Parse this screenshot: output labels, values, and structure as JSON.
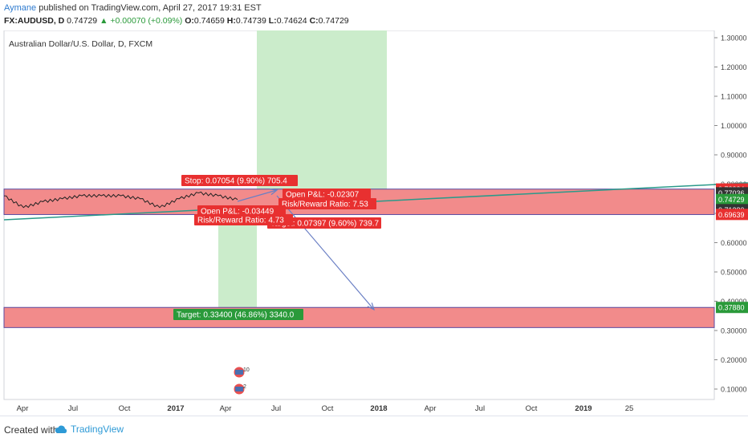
{
  "header": {
    "author": "Aymane",
    "published_text": "published on TradingView.com, April 27, 2017 19:31 EST",
    "symbol": "FX:AUDUSD, D",
    "last": "0.74729",
    "change": "+0.00070 (+0.09%)",
    "o_label": "O:",
    "o": "0.74659",
    "h_label": "H:",
    "h": "0.74739",
    "l_label": "L:",
    "l": "0.74624",
    "c_label": "C:",
    "c": "0.74729"
  },
  "chart_data": {
    "type": "line",
    "title": "Australian Dollar/U.S. Dollar, D, FXCM",
    "xlabel": "",
    "ylabel": "",
    "ylim": [
      0.05,
      1.33
    ],
    "y_ticks": [
      0.1,
      0.2,
      0.3,
      0.4,
      0.5,
      0.6,
      0.7,
      0.8,
      0.9,
      1.0,
      1.1,
      1.2,
      1.3
    ],
    "y_tick_labels": [
      "0.10000",
      "0.20000",
      "0.30000",
      "0.40000",
      "0.50000",
      "0.60000",
      "0.70000",
      "0.80000",
      "0.90000",
      "1.00000",
      "1.10000",
      "1.20000",
      "1.30000"
    ],
    "x_tick_labels": [
      "Apr",
      "Jul",
      "Oct",
      "2017",
      "Apr",
      "Jul",
      "Oct",
      "2018",
      "Apr",
      "Jul",
      "Oct",
      "2019",
      "25"
    ],
    "price_series": [
      {
        "x": "2016-04",
        "y": 0.76
      },
      {
        "x": "2016-05",
        "y": 0.72
      },
      {
        "x": "2016-06",
        "y": 0.74
      },
      {
        "x": "2016-07",
        "y": 0.75
      },
      {
        "x": "2016-08",
        "y": 0.76
      },
      {
        "x": "2016-09",
        "y": 0.76
      },
      {
        "x": "2016-10",
        "y": 0.76
      },
      {
        "x": "2016-11",
        "y": 0.75
      },
      {
        "x": "2016-12",
        "y": 0.72
      },
      {
        "x": "2017-01",
        "y": 0.75
      },
      {
        "x": "2017-02",
        "y": 0.77
      },
      {
        "x": "2017-03",
        "y": 0.76
      },
      {
        "x": "2017-04",
        "y": 0.747
      }
    ],
    "price_badges": [
      {
        "label": "0.78334",
        "y": 0.78334,
        "color": "#e83030"
      },
      {
        "label": "0.77036",
        "y": 0.77036,
        "color": "#333333"
      },
      {
        "label": "0.74729",
        "y": 0.74729,
        "color": "#2a9a3a"
      },
      {
        "label": "0.71280",
        "y": 0.7128,
        "color": "#333333"
      },
      {
        "label": "0.69639",
        "y": 0.69639,
        "color": "#e83030"
      },
      {
        "label": "0.37880",
        "y": 0.3788,
        "color": "#2a9a3a"
      }
    ],
    "annotations": [
      {
        "text": "Stop: 0.07054 (9.90%) 705.4",
        "color": "#e83030"
      },
      {
        "text": "Open P&L: -0.02307",
        "color": "#e83030"
      },
      {
        "text": "Risk/Reward Ratio: 7.53",
        "color": "#e83030"
      },
      {
        "text": "Open P&L: -0.03449",
        "color": "#e83030"
      },
      {
        "text": "Risk/Reward Ratio: 4.73",
        "color": "#e83030"
      },
      {
        "text": "Target: 0.07397 (9.60%) 739.7",
        "color": "#e83030"
      },
      {
        "text": "Target: 0.33400 (46.86%) 3340.0",
        "color": "#2a9a3a"
      }
    ],
    "event_badges": [
      "10",
      "2"
    ],
    "colors": {
      "red_zone": "#f28b8b",
      "green_zone": "#c8ebc8",
      "trendline": "#2a9a8a",
      "arrow": "#6a7fc4"
    }
  },
  "footer": {
    "created_with": "Created with",
    "brand": "TradingView"
  }
}
